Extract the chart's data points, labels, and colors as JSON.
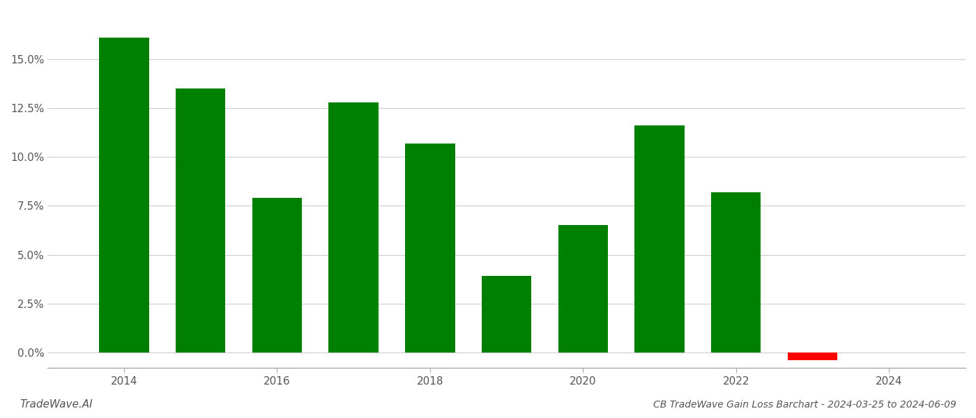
{
  "years": [
    2014,
    2015,
    2016,
    2017,
    2018,
    2019,
    2020,
    2021,
    2022,
    2023
  ],
  "values": [
    0.161,
    0.135,
    0.079,
    0.128,
    0.107,
    0.039,
    0.065,
    0.116,
    0.082,
    -0.004
  ],
  "bar_colors": [
    "#008000",
    "#008000",
    "#008000",
    "#008000",
    "#008000",
    "#008000",
    "#008000",
    "#008000",
    "#008000",
    "#ff0000"
  ],
  "title": "CB TradeWave Gain Loss Barchart - 2024-03-25 to 2024-06-09",
  "watermark": "TradeWave.AI",
  "xlim": [
    2013.0,
    2025.0
  ],
  "ylim": [
    -0.008,
    0.175
  ],
  "yticks": [
    0.0,
    0.025,
    0.05,
    0.075,
    0.1,
    0.125,
    0.15
  ],
  "background_color": "#ffffff",
  "grid_color": "#cccccc",
  "bar_width": 0.65
}
